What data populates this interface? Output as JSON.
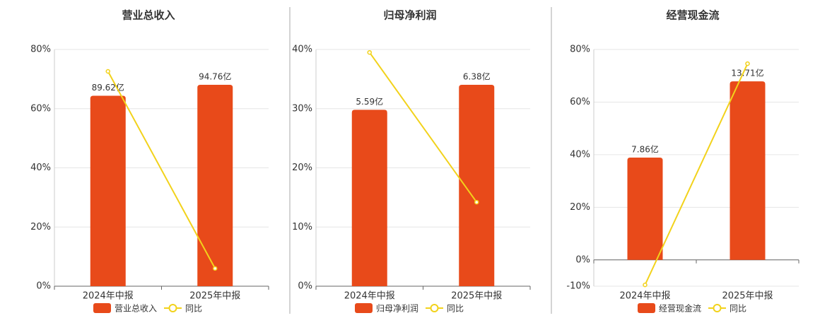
{
  "chart_data": [
    {
      "type": "bar",
      "title": "营业总收入",
      "categories": [
        "2024年中报",
        "2025年中报"
      ],
      "ylim": [
        0,
        80
      ],
      "yticks": [
        {
          "value": 0,
          "label": "0%"
        },
        {
          "value": 20,
          "label": "20%"
        },
        {
          "value": 40,
          "label": "40%"
        },
        {
          "value": 60,
          "label": "60%"
        },
        {
          "value": 80,
          "label": "80%"
        }
      ],
      "y2lim": [
        0,
        111.4
      ],
      "grid": true,
      "series": [
        {
          "name": "营业总收入",
          "type": "bar",
          "axis": "y2",
          "color": "#e84a1a",
          "values": [
            89.62,
            94.76
          ],
          "value_labels": [
            "89.62亿",
            "94.76亿"
          ]
        },
        {
          "name": "同比",
          "type": "line",
          "color": "#f2d21b",
          "values": [
            72.6,
            6.0
          ]
        }
      ]
    },
    {
      "type": "bar",
      "title": "归母净利润",
      "categories": [
        "2024年中报",
        "2025年中报"
      ],
      "ylim": [
        0,
        40
      ],
      "yticks": [
        {
          "value": 0,
          "label": "0%"
        },
        {
          "value": 10,
          "label": "10%"
        },
        {
          "value": 20,
          "label": "20%"
        },
        {
          "value": 30,
          "label": "30%"
        },
        {
          "value": 40,
          "label": "40%"
        }
      ],
      "y2lim": [
        0,
        7.5
      ],
      "grid": true,
      "series": [
        {
          "name": "归母净利润",
          "type": "bar",
          "axis": "y2",
          "color": "#e84a1a",
          "values": [
            5.59,
            6.38
          ],
          "value_labels": [
            "5.59亿",
            "6.38亿"
          ]
        },
        {
          "name": "同比",
          "type": "line",
          "color": "#f2d21b",
          "values": [
            39.5,
            14.2
          ]
        }
      ]
    },
    {
      "type": "bar",
      "title": "经营现金流",
      "categories": [
        "2024年中报",
        "2025年中报"
      ],
      "ylim": [
        -10,
        80
      ],
      "yticks": [
        {
          "value": -10,
          "label": "-10%"
        },
        {
          "value": 0,
          "label": "0%"
        },
        {
          "value": 20,
          "label": "20%"
        },
        {
          "value": 40,
          "label": "40%"
        },
        {
          "value": 60,
          "label": "60%"
        },
        {
          "value": 80,
          "label": "80%"
        }
      ],
      "y2lim": [
        -2.02,
        16.16
      ],
      "grid": true,
      "series": [
        {
          "name": "经营现金流",
          "type": "bar",
          "axis": "y2",
          "color": "#e84a1a",
          "values": [
            7.86,
            13.71
          ],
          "value_labels": [
            "7.86亿",
            "13.71亿"
          ]
        },
        {
          "name": "同比",
          "type": "line",
          "color": "#f2d21b",
          "values": [
            -9.5,
            74.6
          ]
        }
      ]
    }
  ]
}
